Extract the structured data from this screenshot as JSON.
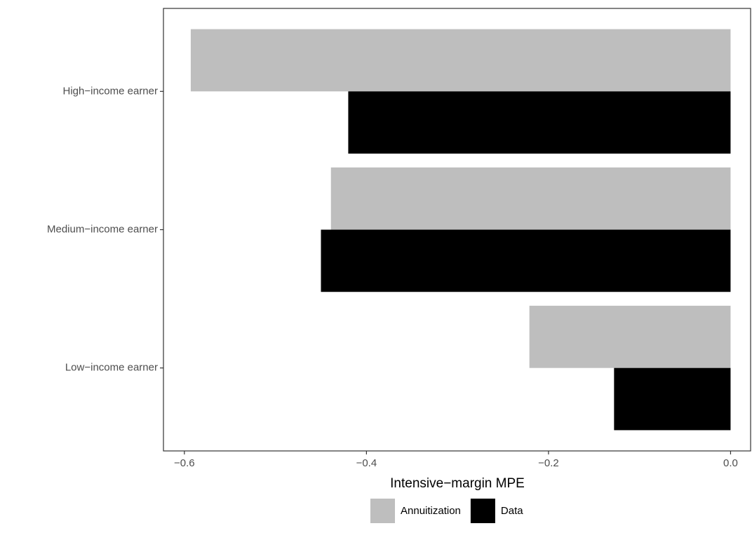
{
  "chart_data": {
    "type": "hbar",
    "x_label": "Intensive−margin MPE",
    "categories": [
      "High−income earner",
      "Medium−income earner",
      "Low−income earner"
    ],
    "series": [
      {
        "name": "Annuitization",
        "color": "#bebebe",
        "values": [
          -0.593,
          -0.439,
          -0.221
        ]
      },
      {
        "name": "Data",
        "color": "#000000",
        "values": [
          -0.42,
          -0.45,
          -0.128
        ]
      }
    ],
    "xlim": [
      -0.623,
      0.022
    ],
    "xticks": [
      {
        "value": -0.6,
        "label": "−0.6"
      },
      {
        "value": -0.4,
        "label": "−0.4"
      },
      {
        "value": -0.2,
        "label": "−0.2"
      },
      {
        "value": 0,
        "label": "0.0"
      }
    ],
    "legend": "bottom"
  }
}
